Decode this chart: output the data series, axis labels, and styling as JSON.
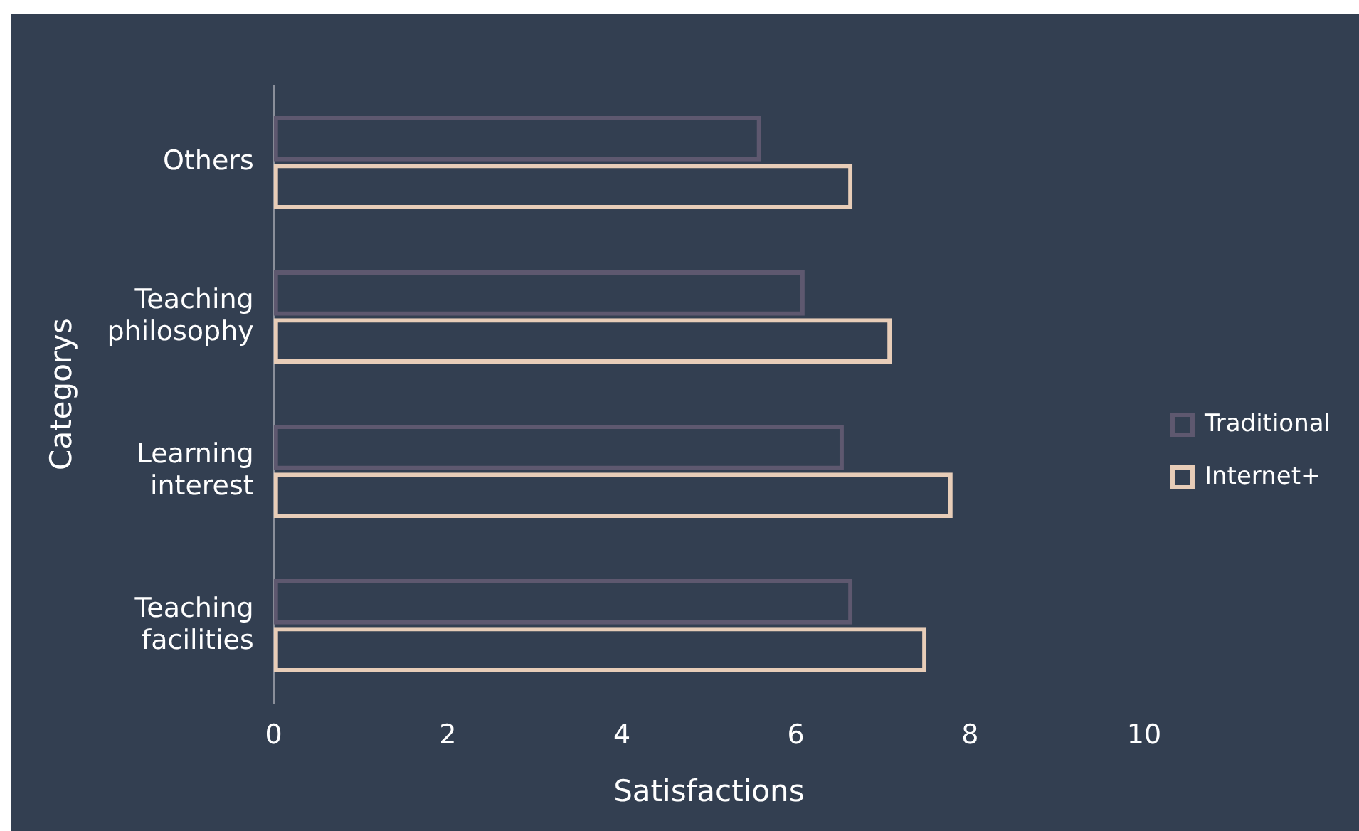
{
  "chart_data": {
    "type": "bar",
    "orientation": "horizontal",
    "xlabel": "Satisfactions",
    "ylabel": "Categorys",
    "categories": [
      "Others",
      "Teaching philosophy",
      "Learning interest",
      "Teaching facilities"
    ],
    "series": [
      {
        "name": "Traditional",
        "color": "#5e586f",
        "values": [
          5.6,
          6.1,
          6.55,
          6.65
        ]
      },
      {
        "name": "Internet+",
        "color": "#e8cdb8",
        "values": [
          6.65,
          7.1,
          7.8,
          7.5
        ]
      }
    ],
    "xlim": [
      0,
      10
    ],
    "xticks": [
      0,
      2,
      4,
      6,
      8,
      10
    ],
    "grid": false,
    "legend": "right"
  }
}
